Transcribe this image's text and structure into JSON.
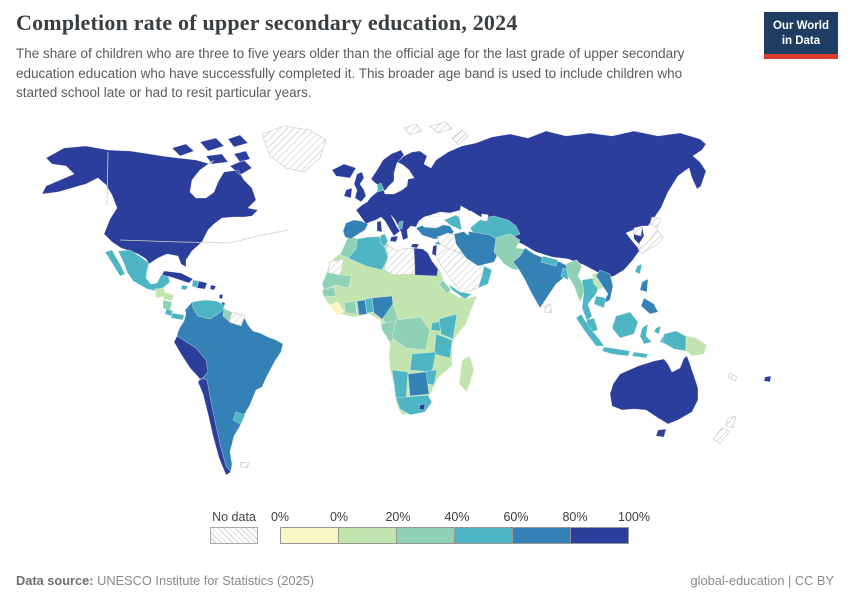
{
  "header": {
    "title": "Completion rate of upper secondary education, 2024",
    "subtitle": "The share of children who are three to five years older than the official age for the last grade of upper secondary education education who have successfully completed it. This broader age band is used to include children who started school late or had to resit particular years."
  },
  "logo": {
    "line1": "Our World",
    "line2": "in Data",
    "bg_color": "#1d3d63",
    "accent_color": "#dc3c2d"
  },
  "legend": {
    "no_data_label": "No data",
    "tick_labels": [
      "0%",
      "0%",
      "20%",
      "40%",
      "60%",
      "80%",
      "100%"
    ],
    "bins": [
      {
        "label": "0%",
        "color": "#faf7c4"
      },
      {
        "label": "0–20%",
        "color": "#c2e4af"
      },
      {
        "label": "20–40%",
        "color": "#8fd1b5"
      },
      {
        "label": "40–60%",
        "color": "#4eb5c4"
      },
      {
        "label": "60–80%",
        "color": "#3381b5"
      },
      {
        "label": "80–100%",
        "color": "#2c3e9c"
      }
    ]
  },
  "footer": {
    "source_label": "Data source:",
    "source_text": " UNESCO Institute for Statistics (2025)",
    "right_text": "global-education | CC BY"
  },
  "map": {
    "palette": {
      "bin1": "#faf7c4",
      "bin2": "#c2e4af",
      "bin3": "#8fd1b5",
      "bin4": "#4eb5c4",
      "bin5": "#3381b5",
      "bin6": "#2c3e9c",
      "water": "#ffffff"
    },
    "regions": [
      {
        "id": "eurasia",
        "bin": "bin6"
      },
      {
        "id": "scandinavia",
        "bin": "bin6"
      },
      {
        "id": "north-america",
        "bin": "bin6"
      },
      {
        "id": "greenland",
        "bin": "no_data"
      },
      {
        "id": "svalbard-arctic",
        "bin": "no_data"
      },
      {
        "id": "mexico",
        "bin": "bin4"
      },
      {
        "id": "guatemala-belize",
        "bin": "bin2"
      },
      {
        "id": "honduras",
        "bin": "bin2"
      },
      {
        "id": "nicaragua",
        "bin": "bin3"
      },
      {
        "id": "costa-rica",
        "bin": "bin4"
      },
      {
        "id": "panama",
        "bin": "bin4"
      },
      {
        "id": "cuba",
        "bin": "bin6"
      },
      {
        "id": "jamaica",
        "bin": "bin4"
      },
      {
        "id": "haiti",
        "bin": "bin4"
      },
      {
        "id": "dominican-republic",
        "bin": "bin6"
      },
      {
        "id": "puerto-rico",
        "bin": "bin6"
      },
      {
        "id": "lesser-antilles",
        "bin": "bin6"
      },
      {
        "id": "south-america",
        "bin": "bin5"
      },
      {
        "id": "peru-chile",
        "bin": "bin6"
      },
      {
        "id": "venezuela",
        "bin": "bin4"
      },
      {
        "id": "guyana",
        "bin": "bin3"
      },
      {
        "id": "suriname-guiana",
        "bin": "no_data"
      },
      {
        "id": "uruguay",
        "bin": "bin4"
      },
      {
        "id": "falkland-islands",
        "bin": "no_data"
      },
      {
        "id": "africa",
        "bin": "bin2"
      },
      {
        "id": "morocco",
        "bin": "bin3"
      },
      {
        "id": "western-sahara",
        "bin": "no_data"
      },
      {
        "id": "algeria",
        "bin": "bin4"
      },
      {
        "id": "tunisia",
        "bin": "bin4"
      },
      {
        "id": "libya",
        "bin": "no_data"
      },
      {
        "id": "egypt",
        "bin": "bin6"
      },
      {
        "id": "mauritania",
        "bin": "bin3"
      },
      {
        "id": "senegal",
        "bin": "bin3"
      },
      {
        "id": "sierra-leone-liberia",
        "bin": "bin1"
      },
      {
        "id": "ivory-coast",
        "bin": "bin3"
      },
      {
        "id": "ghana",
        "bin": "bin5"
      },
      {
        "id": "togo-benin",
        "bin": "bin4"
      },
      {
        "id": "nigeria",
        "bin": "bin5"
      },
      {
        "id": "cameroon",
        "bin": "bin3"
      },
      {
        "id": "gabon-congo",
        "bin": "bin3"
      },
      {
        "id": "drc",
        "bin": "bin3"
      },
      {
        "id": "uganda",
        "bin": "bin4"
      },
      {
        "id": "kenya",
        "bin": "bin4"
      },
      {
        "id": "tanzania",
        "bin": "bin4"
      },
      {
        "id": "zambia",
        "bin": "bin4"
      },
      {
        "id": "zimbabwe",
        "bin": "bin4"
      },
      {
        "id": "botswana",
        "bin": "bin5"
      },
      {
        "id": "namibia",
        "bin": "bin4"
      },
      {
        "id": "south-africa",
        "bin": "bin4"
      },
      {
        "id": "lesotho",
        "bin": "bin6"
      },
      {
        "id": "madagascar",
        "bin": "bin2"
      },
      {
        "id": "eritrea",
        "bin": "bin3"
      },
      {
        "id": "iberia",
        "bin": "bin5"
      },
      {
        "id": "uk",
        "bin": "bin6"
      },
      {
        "id": "ireland",
        "bin": "bin6"
      },
      {
        "id": "iceland",
        "bin": "bin6"
      },
      {
        "id": "denmark",
        "bin": "bin4"
      },
      {
        "id": "albania",
        "bin": "bin4"
      },
      {
        "id": "italy-islands",
        "bin": "bin6"
      },
      {
        "id": "cyprus",
        "bin": "bin4"
      },
      {
        "id": "turkey",
        "bin": "bin5"
      },
      {
        "id": "caucasus",
        "bin": "bin4"
      },
      {
        "id": "central-asia",
        "bin": "bin4"
      },
      {
        "id": "iraq-syria",
        "bin": "no_data"
      },
      {
        "id": "israel",
        "bin": "bin6"
      },
      {
        "id": "arabia",
        "bin": "no_data"
      },
      {
        "id": "yemen-oman",
        "bin": "bin4"
      },
      {
        "id": "iran",
        "bin": "bin5"
      },
      {
        "id": "afghanistan-pakistan",
        "bin": "bin3"
      },
      {
        "id": "india",
        "bin": "bin5"
      },
      {
        "id": "nepal-bhutan",
        "bin": "bin4"
      },
      {
        "id": "bangladesh",
        "bin": "bin4"
      },
      {
        "id": "sri-lanka",
        "bin": "no_data"
      },
      {
        "id": "myanmar",
        "bin": "bin3"
      },
      {
        "id": "thailand",
        "bin": "bin4"
      },
      {
        "id": "laos",
        "bin": "bin2"
      },
      {
        "id": "vietnam",
        "bin": "bin5"
      },
      {
        "id": "cambodia",
        "bin": "bin4"
      },
      {
        "id": "malaysia",
        "bin": "bin4"
      },
      {
        "id": "sumatra",
        "bin": "bin4"
      },
      {
        "id": "java",
        "bin": "bin4"
      },
      {
        "id": "lesser-sunda",
        "bin": "bin4"
      },
      {
        "id": "borneo",
        "bin": "bin4"
      },
      {
        "id": "sulawesi",
        "bin": "bin4"
      },
      {
        "id": "moluccas",
        "bin": "bin4"
      },
      {
        "id": "philippines",
        "bin": "bin5"
      },
      {
        "id": "taiwan",
        "bin": "bin4"
      },
      {
        "id": "north-korea",
        "bin": "no_data"
      },
      {
        "id": "japan",
        "bin": "no_data"
      },
      {
        "id": "new-guinea-west",
        "bin": "bin4"
      },
      {
        "id": "papua-new-guinea",
        "bin": "bin2"
      },
      {
        "id": "australia",
        "bin": "bin6"
      },
      {
        "id": "tasmania",
        "bin": "bin6"
      },
      {
        "id": "new-zealand",
        "bin": "no_data"
      },
      {
        "id": "fiji",
        "bin": "bin6"
      },
      {
        "id": "new-caledonia",
        "bin": "no_data"
      },
      {
        "id": "black-sea",
        "bin": "water"
      },
      {
        "id": "caspian-sea",
        "bin": "water"
      },
      {
        "id": "aral-sea",
        "bin": "water"
      }
    ]
  },
  "chart_data": {
    "type": "choropleth_map",
    "title": "Completion rate of upper secondary education, 2024",
    "unit": "%",
    "legend_bins": [
      "No data",
      "0%",
      "0–20%",
      "20–40%",
      "40–60%",
      "60–80%",
      "80–100%"
    ],
    "countries": {
      "United States": "80–100%",
      "Canada": "80–100%",
      "Greenland": "No data",
      "Mexico": "40–60%",
      "Guatemala": "0–20%",
      "Honduras": "0–20%",
      "Nicaragua": "20–40%",
      "Costa Rica": "40–60%",
      "Panama": "40–60%",
      "Cuba": "80–100%",
      "Jamaica": "40–60%",
      "Haiti": "40–60%",
      "Dominican Republic": "80–100%",
      "Colombia": "60–80%",
      "Venezuela": "40–60%",
      "Guyana": "20–40%",
      "Suriname": "No data",
      "Ecuador": "60–80%",
      "Peru": "80–100%",
      "Brazil": "60–80%",
      "Bolivia": "60–80%",
      "Paraguay": "60–80%",
      "Chile": "80–100%",
      "Argentina": "60–80%",
      "Uruguay": "40–60%",
      "Iceland": "80–100%",
      "United Kingdom": "80–100%",
      "Ireland": "80–100%",
      "Norway": "80–100%",
      "Sweden": "80–100%",
      "Finland": "80–100%",
      "Denmark": "40–60%",
      "France": "80–100%",
      "Germany": "80–100%",
      "Poland": "80–100%",
      "Spain": "60–80%",
      "Portugal": "60–80%",
      "Italy": "80–100%",
      "Albania": "40–60%",
      "Greece": "80–100%",
      "Ukraine": "80–100%",
      "Russia": "80–100%",
      "Turkey": "60–80%",
      "Georgia": "40–60%",
      "Azerbaijan": "40–60%",
      "Kazakhstan": "80–100%",
      "Uzbekistan": "40–60%",
      "Turkmenistan": "40–60%",
      "China": "80–100%",
      "Mongolia": "80–100%",
      "South Korea": "80–100%",
      "North Korea": "No data",
      "Japan": "No data",
      "Morocco": "20–40%",
      "Western Sahara": "No data",
      "Algeria": "40–60%",
      "Tunisia": "40–60%",
      "Libya": "No data",
      "Egypt": "80–100%",
      "Mauritania": "20–40%",
      "Senegal": "20–40%",
      "Mali": "0–20%",
      "Niger": "0–20%",
      "Chad": "0–20%",
      "Sudan": "0–20%",
      "Ethiopia": "0–20%",
      "Somalia": "0–20%",
      "Eritrea": "20–40%",
      "Sierra Leone": "0%",
      "Liberia": "0%",
      "Ivory Coast": "20–40%",
      "Ghana": "60–80%",
      "Togo": "40–60%",
      "Benin": "40–60%",
      "Nigeria": "60–80%",
      "Cameroon": "20–40%",
      "Gabon": "20–40%",
      "Democratic Republic of Congo": "20–40%",
      "Uganda": "40–60%",
      "Kenya": "40–60%",
      "Tanzania": "40–60%",
      "Angola": "0–20%",
      "Zambia": "40–60%",
      "Zimbabwe": "40–60%",
      "Botswana": "60–80%",
      "Namibia": "40–60%",
      "South Africa": "40–60%",
      "Lesotho": "80–100%",
      "Mozambique": "0–20%",
      "Madagascar": "0–20%",
      "Saudi Arabia": "No data",
      "Jordan": "No data",
      "Iraq": "No data",
      "Syria": "No data",
      "Israel": "80–100%",
      "Yemen": "40–60%",
      "Oman": "40–60%",
      "Iran": "60–80%",
      "Afghanistan": "20–40%",
      "Pakistan": "20–40%",
      "India": "60–80%",
      "Nepal": "40–60%",
      "Bangladesh": "40–60%",
      "Sri Lanka": "No data",
      "Myanmar": "20–40%",
      "Thailand": "40–60%",
      "Laos": "0–20%",
      "Vietnam": "60–80%",
      "Cambodia": "40–60%",
      "Malaysia": "40–60%",
      "Indonesia": "40–60%",
      "Philippines": "60–80%",
      "Taiwan": "40–60%",
      "Papua New Guinea": "0–20%",
      "Australia": "80–100%",
      "New Zealand": "No data",
      "Fiji": "80–100%"
    }
  }
}
